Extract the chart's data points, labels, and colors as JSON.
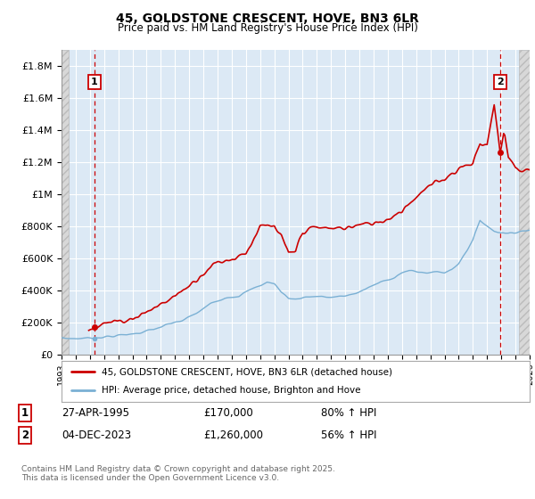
{
  "title": "45, GOLDSTONE CRESCENT, HOVE, BN3 6LR",
  "subtitle": "Price paid vs. HM Land Registry's House Price Index (HPI)",
  "ylim": [
    0,
    1900000
  ],
  "yticks": [
    0,
    200000,
    400000,
    600000,
    800000,
    1000000,
    1200000,
    1400000,
    1600000,
    1800000
  ],
  "ytick_labels": [
    "£0",
    "£200K",
    "£400K",
    "£600K",
    "£800K",
    "£1M",
    "£1.2M",
    "£1.4M",
    "£1.6M",
    "£1.8M"
  ],
  "xlim_start": 1993.0,
  "xlim_end": 2026.0,
  "sale1_year": 1995.32,
  "sale1_price": 170000,
  "sale2_year": 2023.92,
  "sale2_price": 1260000,
  "legend_line1": "45, GOLDSTONE CRESCENT, HOVE, BN3 6LR (detached house)",
  "legend_line2": "HPI: Average price, detached house, Brighton and Hove",
  "ann1_label": "1",
  "ann1_date": "27-APR-1995",
  "ann1_price": "£170,000",
  "ann1_hpi": "80% ↑ HPI",
  "ann2_label": "2",
  "ann2_date": "04-DEC-2023",
  "ann2_price": "£1,260,000",
  "ann2_hpi": "56% ↑ HPI",
  "footer": "Contains HM Land Registry data © Crown copyright and database right 2025.\nThis data is licensed under the Open Government Licence v3.0.",
  "plot_bg": "#dce9f5",
  "grid_color": "#ffffff",
  "red_color": "#cc0000",
  "blue_color": "#7ab0d4",
  "hatch_face": "#d8d8d8",
  "hatch_edge": "#bbbbbb"
}
